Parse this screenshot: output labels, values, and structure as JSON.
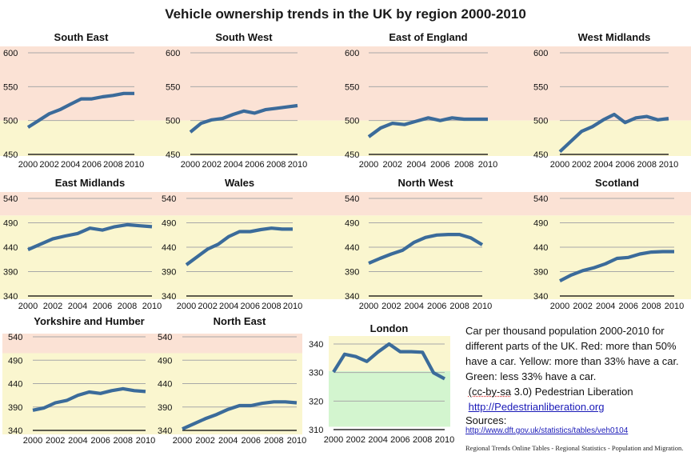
{
  "title": "Vehicle ownership trends in the UK by region 2000-2010",
  "colors": {
    "red_band": "#fbe2d5",
    "yellow_band": "#faf6cf",
    "green_band": "#d3f5cf",
    "line": "#3b6b9a",
    "grid": "#a8a8a8",
    "axis": "#000000"
  },
  "notes": {
    "line1": "Car per thousand population 2000-2010 for",
    "line2": "different parts of the UK. Red: more than 50%",
    "line3": "have a car. Yellow: more than 33% have a car.",
    "line4": "Green: less 33% have a car.",
    "license_prefix": "(cc-by-sa",
    "license_rest": " 3.0) Pedestrian Liberation",
    "site_link": "http://Pedestrianliberation.org",
    "sources_label": "Sources:",
    "source_link": "http://www.dft.gov.uk/statistics/tables/veh0104",
    "source2": "Regional Trends Online Tables - Regional Statistics - Population and Migration."
  },
  "chart_data": [
    {
      "type": "line",
      "title": "South East",
      "x": [
        2000,
        2001,
        2002,
        2003,
        2004,
        2005,
        2006,
        2007,
        2008,
        2009,
        2010
      ],
      "values": [
        490,
        500,
        510,
        516,
        524,
        532,
        532,
        535,
        537,
        540,
        540
      ],
      "ylim": [
        450,
        600
      ],
      "yticks": [
        450,
        500,
        550,
        600
      ],
      "xticks": [
        2000,
        2002,
        2004,
        2006,
        2008,
        2010
      ],
      "bands": [
        {
          "color": "red",
          "from": 500,
          "to": 600
        },
        {
          "color": "yellow",
          "from": 450,
          "to": 500
        }
      ]
    },
    {
      "type": "line",
      "title": "South West",
      "x": [
        2000,
        2001,
        2002,
        2003,
        2004,
        2005,
        2006,
        2007,
        2008,
        2009,
        2010
      ],
      "values": [
        483,
        496,
        501,
        503,
        509,
        514,
        511,
        516,
        518,
        520,
        522
      ],
      "ylim": [
        450,
        600
      ],
      "yticks": [
        450,
        500,
        550,
        600
      ],
      "xticks": [
        2000,
        2002,
        2004,
        2006,
        2008,
        2010
      ],
      "bands": [
        {
          "color": "red",
          "from": 500,
          "to": 600
        },
        {
          "color": "yellow",
          "from": 450,
          "to": 500
        }
      ]
    },
    {
      "type": "line",
      "title": "East of England",
      "x": [
        2000,
        2001,
        2002,
        2003,
        2004,
        2005,
        2006,
        2007,
        2008,
        2009,
        2010
      ],
      "values": [
        476,
        489,
        496,
        494,
        499,
        504,
        500,
        504,
        502,
        502,
        502
      ],
      "ylim": [
        450,
        600
      ],
      "yticks": [
        450,
        500,
        550,
        600
      ],
      "xticks": [
        2000,
        2002,
        2004,
        2006,
        2008,
        2010
      ],
      "bands": [
        {
          "color": "red",
          "from": 500,
          "to": 600
        },
        {
          "color": "yellow",
          "from": 450,
          "to": 500
        }
      ]
    },
    {
      "type": "line",
      "title": "West Midlands",
      "x": [
        2000,
        2001,
        2002,
        2003,
        2004,
        2005,
        2006,
        2007,
        2008,
        2009,
        2010
      ],
      "values": [
        454,
        469,
        484,
        491,
        501,
        509,
        497,
        504,
        506,
        501,
        503
      ],
      "ylim": [
        450,
        600
      ],
      "yticks": [
        450,
        500,
        550,
        600
      ],
      "xticks": [
        2000,
        2002,
        2004,
        2006,
        2008,
        2010
      ],
      "bands": [
        {
          "color": "red",
          "from": 500,
          "to": 600
        },
        {
          "color": "yellow",
          "from": 450,
          "to": 500
        }
      ]
    },
    {
      "type": "line",
      "title": "East Midlands",
      "x": [
        2000,
        2001,
        2002,
        2003,
        2004,
        2005,
        2006,
        2007,
        2008,
        2009,
        2010
      ],
      "values": [
        435,
        446,
        457,
        463,
        468,
        479,
        475,
        482,
        486,
        484,
        482
      ],
      "ylim": [
        340,
        540
      ],
      "yticks": [
        340,
        390,
        440,
        490,
        540
      ],
      "xticks": [
        2000,
        2002,
        2004,
        2006,
        2008,
        2010
      ],
      "bands": [
        {
          "color": "red",
          "from": 505,
          "to": 540
        },
        {
          "color": "yellow",
          "from": 340,
          "to": 505
        }
      ]
    },
    {
      "type": "line",
      "title": "Wales",
      "x": [
        2000,
        2001,
        2002,
        2003,
        2004,
        2005,
        2006,
        2007,
        2008,
        2009,
        2010
      ],
      "values": [
        404,
        420,
        436,
        446,
        462,
        472,
        472,
        476,
        479,
        477,
        477
      ],
      "ylim": [
        340,
        540
      ],
      "yticks": [
        340,
        390,
        440,
        490,
        540
      ],
      "xticks": [
        2000,
        2002,
        2004,
        2006,
        2008,
        2010
      ],
      "bands": [
        {
          "color": "red",
          "from": 505,
          "to": 540
        },
        {
          "color": "yellow",
          "from": 340,
          "to": 505
        }
      ]
    },
    {
      "type": "line",
      "title": "North West",
      "x": [
        2000,
        2001,
        2002,
        2003,
        2004,
        2005,
        2006,
        2007,
        2008,
        2009,
        2010
      ],
      "values": [
        407,
        417,
        426,
        434,
        450,
        460,
        465,
        466,
        466,
        459,
        445
      ],
      "ylim": [
        340,
        540
      ],
      "yticks": [
        340,
        390,
        440,
        490,
        540
      ],
      "xticks": [
        2000,
        2002,
        2004,
        2006,
        2008,
        2010
      ],
      "bands": [
        {
          "color": "red",
          "from": 505,
          "to": 540
        },
        {
          "color": "yellow",
          "from": 340,
          "to": 505
        }
      ]
    },
    {
      "type": "line",
      "title": "Scotland",
      "x": [
        2000,
        2001,
        2002,
        2003,
        2004,
        2005,
        2006,
        2007,
        2008,
        2009,
        2010
      ],
      "values": [
        371,
        383,
        392,
        398,
        406,
        417,
        419,
        426,
        430,
        431,
        431
      ],
      "ylim": [
        340,
        540
      ],
      "yticks": [
        340,
        390,
        440,
        490,
        540
      ],
      "xticks": [
        2000,
        2002,
        2004,
        2006,
        2008,
        2010
      ],
      "bands": [
        {
          "color": "red",
          "from": 505,
          "to": 540
        },
        {
          "color": "yellow",
          "from": 340,
          "to": 505
        }
      ]
    },
    {
      "type": "line",
      "title": "Yorkshire and Humber",
      "x": [
        2000,
        2001,
        2002,
        2003,
        2004,
        2005,
        2006,
        2007,
        2008,
        2009,
        2010
      ],
      "values": [
        383,
        388,
        399,
        404,
        415,
        422,
        419,
        425,
        429,
        425,
        423
      ],
      "ylim": [
        340,
        540
      ],
      "yticks": [
        340,
        390,
        440,
        490,
        540
      ],
      "xticks": [
        2000,
        2002,
        2004,
        2006,
        2008,
        2010
      ],
      "bands": [
        {
          "color": "red",
          "from": 505,
          "to": 540
        },
        {
          "color": "yellow",
          "from": 340,
          "to": 505
        }
      ]
    },
    {
      "type": "line",
      "title": "North East",
      "x": [
        2000,
        2001,
        2002,
        2003,
        2004,
        2005,
        2006,
        2007,
        2008,
        2009,
        2010
      ],
      "values": [
        343,
        354,
        365,
        374,
        385,
        393,
        393,
        398,
        401,
        401,
        399
      ],
      "ylim": [
        340,
        540
      ],
      "yticks": [
        340,
        390,
        440,
        490,
        540
      ],
      "xticks": [
        2000,
        2002,
        2004,
        2006,
        2008,
        2010
      ],
      "bands": [
        {
          "color": "red",
          "from": 505,
          "to": 540
        },
        {
          "color": "yellow",
          "from": 340,
          "to": 505
        }
      ]
    },
    {
      "type": "line",
      "title": "London",
      "x": [
        2000,
        2001,
        2002,
        2003,
        2004,
        2005,
        2006,
        2007,
        2008,
        2009,
        2010
      ],
      "values": [
        330.2,
        336.4,
        335.6,
        333.9,
        337.2,
        340,
        337.3,
        337.3,
        337.1,
        329.9,
        327.8
      ],
      "ylim": [
        310,
        340
      ],
      "yticks": [
        310,
        320,
        330,
        340
      ],
      "xticks": [
        2000,
        2002,
        2004,
        2006,
        2008,
        2010
      ],
      "bands": [
        {
          "color": "yellow",
          "from": 330.5,
          "to": 343
        },
        {
          "color": "green",
          "from": 311,
          "to": 330.5
        }
      ]
    }
  ]
}
